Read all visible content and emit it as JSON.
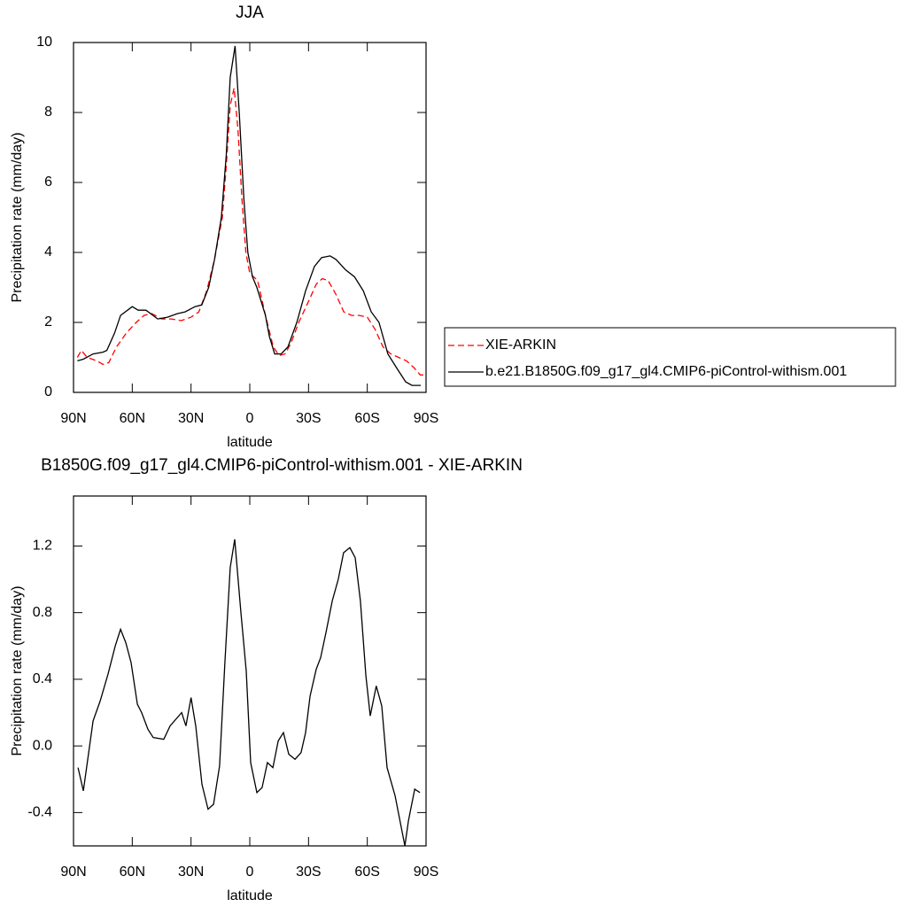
{
  "chart_data": [
    {
      "type": "line",
      "title": "JJA",
      "xlabel": "latitude",
      "ylabel": "Precipitation rate (mm/day)",
      "xlim": [
        90,
        -90
      ],
      "ylim": [
        0,
        10
      ],
      "xticks": [
        {
          "value": 90,
          "label": "90N"
        },
        {
          "value": 60,
          "label": "60N"
        },
        {
          "value": 30,
          "label": "30N"
        },
        0,
        {
          "value": -30,
          "label": "30S"
        },
        {
          "value": -60,
          "label": "60S"
        },
        {
          "value": -90,
          "label": "90S"
        }
      ],
      "yticks": [
        0,
        2,
        4,
        6,
        8,
        10
      ],
      "series": [
        {
          "name": "XIE-ARKIN",
          "color": "#ff0000",
          "dashed": true,
          "x": [
            88,
            86,
            83,
            78,
            75,
            72,
            68,
            63,
            58,
            54,
            50,
            45,
            40,
            35,
            30,
            26,
            22,
            18,
            14,
            12,
            10,
            8,
            6,
            4,
            2,
            0,
            -2,
            -4,
            -8,
            -12,
            -15,
            -18,
            -21,
            -25,
            -30,
            -34,
            -37,
            -40,
            -44,
            -48,
            -52,
            -56,
            -60,
            -64,
            -68,
            -72,
            -76,
            -80,
            -84,
            -87,
            -89
          ],
          "values": [
            1.0,
            1.2,
            1.0,
            0.9,
            0.8,
            0.85,
            1.3,
            1.7,
            2.0,
            2.2,
            2.25,
            2.1,
            2.1,
            2.05,
            2.15,
            2.3,
            2.9,
            3.8,
            5.0,
            6.5,
            8.2,
            8.7,
            7.5,
            5.5,
            4.0,
            3.4,
            3.3,
            3.2,
            2.2,
            1.3,
            1.05,
            1.1,
            1.4,
            2.0,
            2.6,
            3.1,
            3.25,
            3.2,
            2.8,
            2.3,
            2.2,
            2.2,
            2.15,
            1.8,
            1.3,
            1.1,
            1.0,
            0.9,
            0.7,
            0.5,
            0.5
          ]
        },
        {
          "name": "b.e21.B1850G.f09_g17_gl4.CMIP6-piControl-withism.001",
          "color": "#000000",
          "dashed": false,
          "x": [
            88,
            85,
            80,
            75,
            73,
            69,
            66,
            60,
            57,
            53,
            47,
            42,
            37,
            33,
            28,
            24.5,
            21,
            18,
            14.5,
            12,
            10,
            7.5,
            5.4,
            3,
            1,
            -1.4,
            -3.6,
            -8,
            -10,
            -12.7,
            -16,
            -19.5,
            -24,
            -28.5,
            -33,
            -36.7,
            -41,
            -44,
            -49,
            -53.5,
            -58,
            -62,
            -66,
            -70.5,
            -75,
            -79.6,
            -82.8,
            -87.3
          ],
          "values": [
            0.9,
            0.95,
            1.1,
            1.15,
            1.2,
            1.7,
            2.2,
            2.45,
            2.35,
            2.35,
            2.1,
            2.15,
            2.25,
            2.3,
            2.45,
            2.5,
            3.0,
            3.8,
            5.0,
            6.8,
            9.0,
            9.9,
            8.0,
            5.5,
            4.0,
            3.3,
            3.0,
            2.2,
            1.6,
            1.1,
            1.1,
            1.3,
            2.0,
            2.9,
            3.6,
            3.85,
            3.9,
            3.8,
            3.5,
            3.3,
            2.9,
            2.3,
            2.0,
            1.1,
            0.7,
            0.3,
            0.2,
            0.2
          ]
        }
      ]
    },
    {
      "type": "line",
      "title": "B1850G.f09_g17_gl4.CMIP6-piControl-withism.001 - XIE-ARKIN",
      "xlabel": "latitude",
      "ylabel": "Precipitation rate (mm/day)",
      "xlim": [
        90,
        -90
      ],
      "ylim": [
        -0.6,
        1.5
      ],
      "xticks": [
        {
          "value": 90,
          "label": "90N"
        },
        {
          "value": 60,
          "label": "60N"
        },
        {
          "value": 30,
          "label": "30N"
        },
        0,
        {
          "value": -30,
          "label": "30S"
        },
        {
          "value": -60,
          "label": "60S"
        },
        {
          "value": -90,
          "label": "90S"
        }
      ],
      "yticks": [
        -0.4,
        {
          "value": 0,
          "label": "0.0"
        },
        0.4,
        0.8,
        1.2
      ],
      "series": [
        {
          "color": "#000000",
          "dashed": false,
          "x": [
            87.7,
            85,
            80,
            76.4,
            72.4,
            68.7,
            66,
            63.3,
            60.6,
            57.4,
            55.2,
            52,
            49.3,
            43.9,
            40.7,
            34.8,
            32.6,
            30,
            27.6,
            24.4,
            21.3,
            18.5,
            15.4,
            12.7,
            10,
            7.7,
            4.5,
            1.8,
            -0.45,
            -3.6,
            -6.3,
            -9,
            -11.8,
            -14.5,
            -17.2,
            -19.9,
            -23.1,
            -26.2,
            -28.5,
            -30.8,
            -33.9,
            -36.2,
            -38.9,
            -42.1,
            -45.2,
            -47.9,
            -51.1,
            -53.8,
            -56.5,
            -59.3,
            -61.5,
            -64.6,
            -67.4,
            -70.1,
            -74.2,
            -79.2,
            -81,
            -84.2,
            -86.9
          ],
          "values": [
            -0.13,
            -0.27,
            0.15,
            0.27,
            0.43,
            0.6,
            0.7,
            0.62,
            0.5,
            0.25,
            0.2,
            0.1,
            0.05,
            0.04,
            0.12,
            0.2,
            0.12,
            0.29,
            0.12,
            -0.23,
            -0.38,
            -0.35,
            -0.12,
            0.5,
            1.07,
            1.24,
            0.8,
            0.45,
            -0.1,
            -0.28,
            -0.25,
            -0.1,
            -0.13,
            0.03,
            0.08,
            -0.05,
            -0.08,
            -0.04,
            0.08,
            0.3,
            0.46,
            0.53,
            0.68,
            0.87,
            1.0,
            1.16,
            1.19,
            1.13,
            0.87,
            0.42,
            0.18,
            0.36,
            0.24,
            -0.13,
            -0.3,
            -0.6,
            -0.45,
            -0.26,
            -0.28
          ]
        }
      ]
    }
  ]
}
